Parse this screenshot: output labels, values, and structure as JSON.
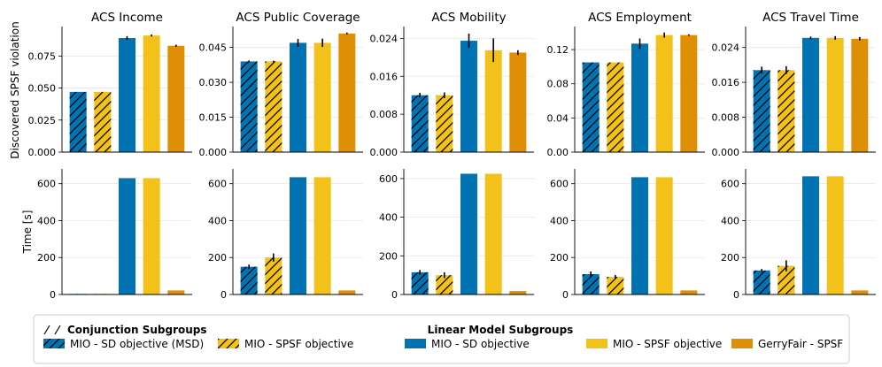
{
  "chart_data": {
    "type": "bar",
    "series_names": [
      "MIO - SD objective (MSD)",
      "MIO - SPSF objective",
      "MIO - SD objective",
      "MIO - SPSF objective",
      "GerryFair - SPSF"
    ],
    "colors": [
      "#0173b2",
      "#f2c21a",
      "#0173b2",
      "#f2c21a",
      "#de8f05"
    ],
    "hatched": [
      true,
      true,
      false,
      false,
      false
    ],
    "row_ylabels": [
      "Discovered SPSF violation",
      "Time [s]"
    ],
    "panels": [
      {
        "title": "ACS Income",
        "top": {
          "ylim": [
            0,
            0.098
          ],
          "ticks": [
            0.0,
            0.025,
            0.05,
            0.075
          ],
          "tick_labels": [
            "0.000",
            "0.025",
            "0.050",
            "0.075"
          ],
          "values": [
            0.047,
            0.047,
            0.089,
            0.091,
            0.083
          ],
          "errors": [
            0,
            0,
            0.0015,
            0.0008,
            0.0008
          ]
        },
        "bottom": {
          "ylim": [
            0,
            680
          ],
          "ticks": [
            0,
            200,
            400,
            600
          ],
          "tick_labels": [
            "0",
            "200",
            "400",
            "600"
          ],
          "values": [
            3,
            3,
            630,
            630,
            22
          ],
          "errors": [
            0,
            0,
            0,
            0,
            0
          ]
        }
      },
      {
        "title": "ACS Public Coverage",
        "top": {
          "ylim": [
            0,
            0.054
          ],
          "ticks": [
            0.0,
            0.015,
            0.03,
            0.045
          ],
          "tick_labels": [
            "0.000",
            "0.015",
            "0.030",
            "0.045"
          ],
          "values": [
            0.039,
            0.039,
            0.047,
            0.047,
            0.051
          ],
          "errors": [
            0.0004,
            0.0003,
            0.0017,
            0.0018,
            0.0004
          ]
        },
        "bottom": {
          "ylim": [
            0,
            680
          ],
          "ticks": [
            0,
            200,
            400,
            600
          ],
          "tick_labels": [
            "0",
            "200",
            "400",
            "600"
          ],
          "values": [
            150,
            200,
            635,
            635,
            22
          ],
          "errors": [
            12,
            22,
            0,
            0,
            0
          ]
        }
      },
      {
        "title": "ACS Mobility",
        "top": {
          "ylim": [
            0,
            0.0265
          ],
          "ticks": [
            0.0,
            0.008,
            0.016,
            0.024
          ],
          "tick_labels": [
            "0.000",
            "0.008",
            "0.016",
            "0.024"
          ],
          "values": [
            0.012,
            0.012,
            0.0235,
            0.0215,
            0.021
          ],
          "errors": [
            0.0005,
            0.0006,
            0.0015,
            0.0025,
            0.0005
          ]
        },
        "bottom": {
          "ylim": [
            0,
            650
          ],
          "ticks": [
            0,
            200,
            400,
            600
          ],
          "tick_labels": [
            "0",
            "200",
            "400",
            "600"
          ],
          "values": [
            115,
            100,
            625,
            625,
            18
          ],
          "errors": [
            12,
            15,
            0,
            0,
            0
          ]
        }
      },
      {
        "title": "ACS Employment",
        "top": {
          "ylim": [
            0,
            0.147
          ],
          "ticks": [
            0.0,
            0.04,
            0.08,
            0.12
          ],
          "tick_labels": [
            "0.00",
            "0.04",
            "0.08",
            "0.12"
          ],
          "values": [
            0.105,
            0.105,
            0.127,
            0.137,
            0.137
          ],
          "errors": [
            0,
            0,
            0.006,
            0.003,
            0.0008
          ]
        },
        "bottom": {
          "ylim": [
            0,
            680
          ],
          "ticks": [
            0,
            200,
            400,
            600
          ],
          "tick_labels": [
            "0",
            "200",
            "400",
            "600"
          ],
          "values": [
            110,
            95,
            635,
            635,
            22
          ],
          "errors": [
            15,
            10,
            0,
            0,
            0
          ]
        }
      },
      {
        "title": "ACS Travel Time",
        "top": {
          "ylim": [
            0,
            0.0288
          ],
          "ticks": [
            0.0,
            0.008,
            0.016,
            0.024
          ],
          "tick_labels": [
            "0.000",
            "0.008",
            "0.016",
            "0.024"
          ],
          "values": [
            0.0188,
            0.0188,
            0.0262,
            0.0262,
            0.026
          ],
          "errors": [
            0.0008,
            0.0009,
            0.0003,
            0.0004,
            0.0004
          ]
        },
        "bottom": {
          "ylim": [
            0,
            680
          ],
          "ticks": [
            0,
            200,
            400,
            600
          ],
          "tick_labels": [
            "0",
            "200",
            "400",
            "600"
          ],
          "values": [
            130,
            155,
            640,
            640,
            22
          ],
          "errors": [
            8,
            30,
            0,
            0,
            0
          ]
        }
      }
    ],
    "legend": {
      "group1_title": "Conjunction Subgroups",
      "group2_title": "Linear Model Subgroups",
      "entries": [
        "MIO - SD objective (MSD)",
        "MIO - SPSF objective",
        "MIO - SD objective",
        "MIO - SPSF objective",
        "GerryFair - SPSF"
      ]
    }
  }
}
